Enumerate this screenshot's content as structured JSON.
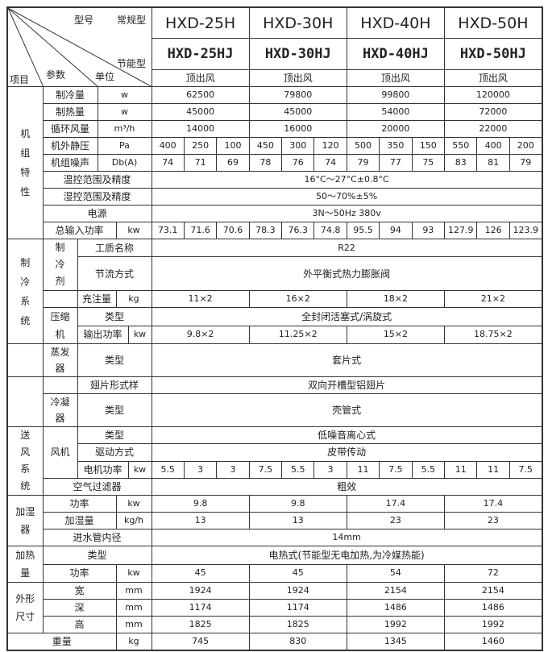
{
  "header": {
    "model_label": "型号",
    "standard_label": "常规型",
    "energy_label": "节能型",
    "item_label": "项目",
    "param_label": "参数",
    "unit_label": "单位",
    "models": [
      {
        "standard": "HXD-25H",
        "energy": "HXD-25HJ",
        "air_outlet": "顶出风"
      },
      {
        "standard": "HXD-30H",
        "energy": "HXD-30HJ",
        "air_outlet": "顶出风"
      },
      {
        "standard": "HXD-40H",
        "energy": "HXD-40HJ",
        "air_outlet": "顶出风"
      },
      {
        "standard": "HXD-50H",
        "energy": "HXD-50HJ",
        "air_outlet": "顶出风"
      }
    ]
  },
  "unit": {
    "label": "机组特性",
    "cooling": {
      "name": "制冷量",
      "unit": "w",
      "values": [
        "62500",
        "79800",
        "99800",
        "120000"
      ]
    },
    "heating": {
      "name": "制热量",
      "unit": "w",
      "values": [
        "45000",
        "45000",
        "54000",
        "72000"
      ]
    },
    "airflow": {
      "name": "循环风量",
      "unit": "m³/h",
      "values": [
        "14000",
        "16000",
        "20000",
        "22000"
      ]
    },
    "static_pressure": {
      "name": "机外静压",
      "unit": "Pa",
      "values": [
        "400",
        "250",
        "100",
        "450",
        "300",
        "120",
        "500",
        "350",
        "150",
        "550",
        "400",
        "200"
      ]
    },
    "noise": {
      "name": "机组噪声",
      "unit": "Db(A)",
      "values": [
        "74",
        "71",
        "69",
        "78",
        "76",
        "74",
        "79",
        "77",
        "75",
        "83",
        "81",
        "79"
      ]
    },
    "temp_control": {
      "name": "温控范围及精度",
      "value": "16°C～27°C±0.8°C"
    },
    "humidity_control": {
      "name": "湿控范围及精度",
      "value": "50～70%±5%"
    },
    "power_supply": {
      "name": "电源",
      "value": "3N～50Hz 380v"
    },
    "total_power": {
      "name": "总输入功率",
      "unit": "kw",
      "values": [
        "73.1",
        "71.6",
        "70.6",
        "78.3",
        "76.3",
        "74.8",
        "95.5",
        "94",
        "93",
        "127.9",
        "126",
        "123.9"
      ]
    }
  },
  "refrigeration": {
    "label": "制冷系统",
    "refrigerant_label": "制冷剂",
    "medium": {
      "name": "工质名称",
      "value": "R22"
    },
    "throttle": {
      "name": "节流方式",
      "value": "外平衡式热力膨胀阀"
    },
    "charge": {
      "name": "充注量",
      "unit": "kg",
      "values": [
        "11×2",
        "16×2",
        "18×2",
        "21×2"
      ]
    },
    "compressor_label": "压缩机",
    "compressor_type": {
      "name": "类型",
      "value": "全封闭活塞式/涡旋式"
    },
    "compressor_power": {
      "name": "输出功率",
      "unit": "kw",
      "values": [
        "9.8×2",
        "11.25×2",
        "15×2",
        "18.75×2"
      ]
    }
  },
  "evaporator": {
    "label": "蒸发器",
    "type": {
      "name": "类型",
      "value": "套片式"
    }
  },
  "condenser": {
    "fin": {
      "name": "翅片形式样",
      "value": "双向开槽型铝翅片"
    },
    "label": "冷凝器",
    "type": {
      "name": "类型",
      "value": "壳管式"
    }
  },
  "air_supply": {
    "label": "送风系统",
    "fan_label": "风机",
    "fan_type": {
      "name": "类型",
      "value": "低噪音离心式"
    },
    "drive": {
      "name": "驱动方式",
      "value": "皮带传动"
    },
    "motor_power": {
      "name": "电机功率",
      "unit": "kw",
      "values": [
        "5.5",
        "3",
        "3",
        "7.5",
        "5.5",
        "3",
        "11",
        "7.5",
        "5.5",
        "11",
        "11",
        "7.5"
      ]
    },
    "filter": {
      "name": "空气过滤器",
      "value": "粗效"
    }
  },
  "humidifier": {
    "label": "加湿器",
    "power": {
      "name": "功率",
      "unit": "kw",
      "values": [
        "9.8",
        "9.8",
        "17.4",
        "17.4"
      ]
    },
    "amount": {
      "name": "加湿量",
      "unit": "kg/h",
      "values": [
        "13",
        "13",
        "23",
        "23"
      ]
    },
    "inlet": {
      "name": "进水管内径",
      "value": "14mm"
    }
  },
  "heater": {
    "label": "加热量",
    "type": {
      "name": "类型",
      "value": "电热式(节能型无电加热,为冷媒热能)"
    },
    "power": {
      "name": "功率",
      "unit": "kw",
      "values": [
        "45",
        "45",
        "54",
        "72"
      ]
    }
  },
  "dimensions": {
    "label": "外形尺寸",
    "width": {
      "name": "宽",
      "unit": "mm",
      "values": [
        "1924",
        "1924",
        "2154",
        "2154"
      ]
    },
    "depth": {
      "name": "深",
      "unit": "mm",
      "values": [
        "1174",
        "1174",
        "1486",
        "1486"
      ]
    },
    "height": {
      "name": "高",
      "unit": "mm",
      "values": [
        "1825",
        "1825",
        "1992",
        "1992"
      ]
    }
  },
  "weight": {
    "name": "重量",
    "unit": "kg",
    "values": [
      "745",
      "830",
      "1345",
      "1460"
    ]
  }
}
